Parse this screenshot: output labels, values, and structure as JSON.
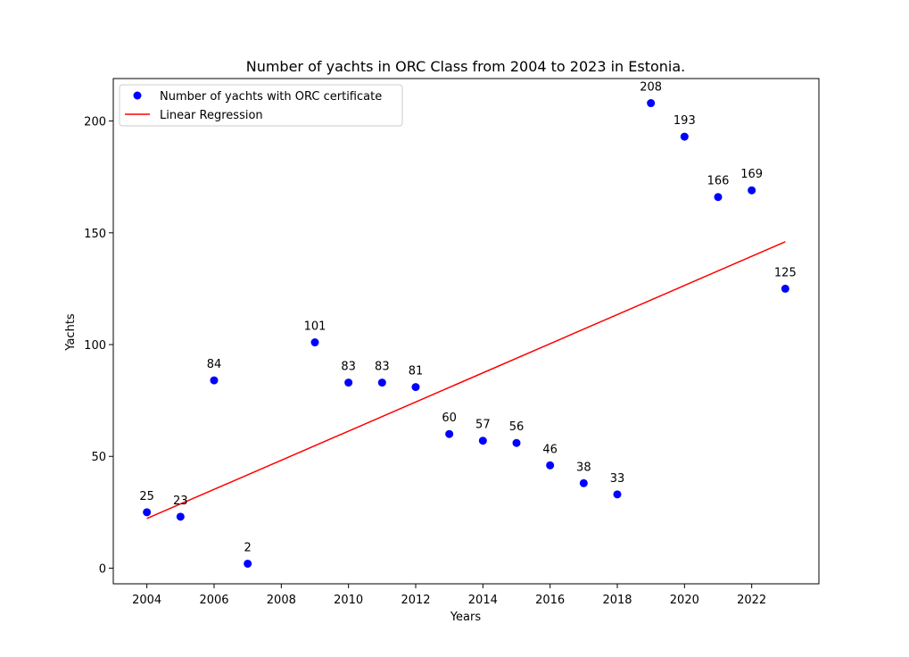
{
  "chart_data": {
    "type": "scatter",
    "title": "Number of yachts in ORC Class from 2004 to 2023 in Estonia.",
    "xlabel": "Years",
    "ylabel": "Yachts",
    "xlim": [
      2003,
      2024
    ],
    "ylim": [
      -7,
      219
    ],
    "xticks": [
      2004,
      2006,
      2008,
      2010,
      2012,
      2014,
      2016,
      2018,
      2020,
      2022
    ],
    "yticks": [
      0,
      50,
      100,
      150,
      200
    ],
    "grid": false,
    "legend_position": "upper-left",
    "series": [
      {
        "name": "Number of yachts with ORC certificate",
        "kind": "scatter",
        "color": "#0000ff",
        "x": [
          2004,
          2005,
          2006,
          2007,
          2009,
          2010,
          2011,
          2012,
          2013,
          2014,
          2015,
          2016,
          2017,
          2018,
          2019,
          2020,
          2021,
          2022,
          2023
        ],
        "y": [
          25,
          23,
          84,
          2,
          101,
          83,
          83,
          81,
          60,
          57,
          56,
          46,
          38,
          33,
          208,
          193,
          166,
          169,
          125
        ],
        "labels": [
          "25",
          "23",
          "84",
          "2",
          "101",
          "83",
          "83",
          "81",
          "60",
          "57",
          "56",
          "46",
          "38",
          "33",
          "208",
          "193",
          "166",
          "169",
          "125"
        ]
      },
      {
        "name": "Linear Regression",
        "kind": "line",
        "color": "#ff0000",
        "x": [
          2004,
          2023
        ],
        "y": [
          22.2,
          146
        ]
      }
    ]
  }
}
